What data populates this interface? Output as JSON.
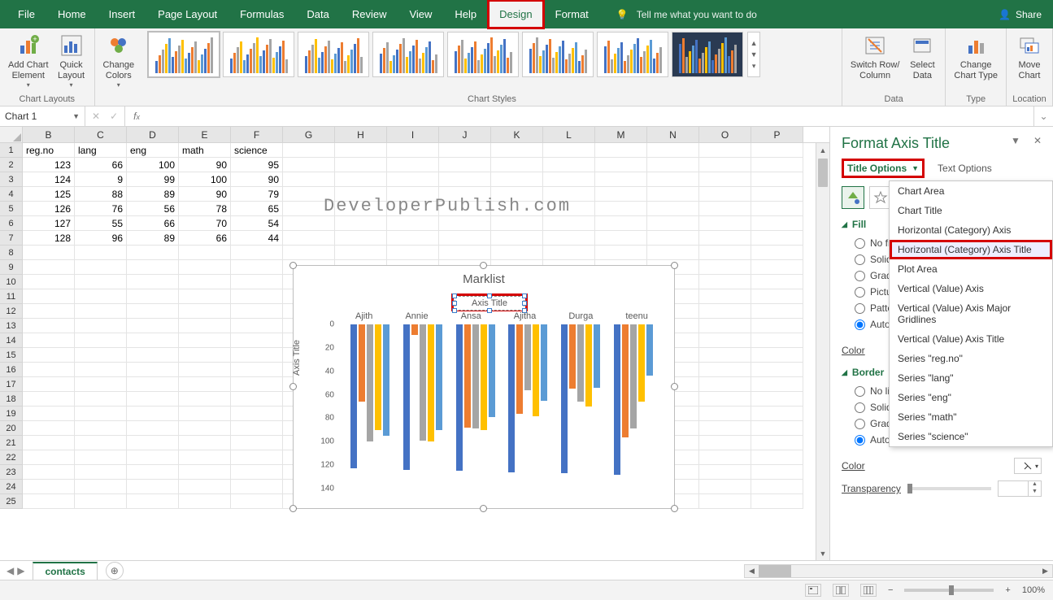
{
  "ribbon": {
    "tabs": [
      "File",
      "Home",
      "Insert",
      "Page Layout",
      "Formulas",
      "Data",
      "Review",
      "View",
      "Help",
      "Design",
      "Format"
    ],
    "active_tab": "Design",
    "highlight_tab": "Design",
    "tell_me": "Tell me what you want to do",
    "share": "Share"
  },
  "ribbon_groups": {
    "chart_layouts": {
      "label": "Chart Layouts",
      "add_el": "Add Chart\nElement",
      "quick": "Quick\nLayout"
    },
    "change_colors": "Change\nColors",
    "chart_styles": {
      "label": "Chart Styles"
    },
    "data": {
      "label": "Data",
      "switch": "Switch Row/\nColumn",
      "select": "Select\nData"
    },
    "type": {
      "label": "Type",
      "change": "Change\nChart Type"
    },
    "location": {
      "label": "Location",
      "move": "Move\nChart"
    }
  },
  "namebox": "Chart 1",
  "fx": "",
  "columns": [
    "B",
    "C",
    "D",
    "E",
    "F",
    "G",
    "H",
    "I",
    "J",
    "K",
    "L",
    "M",
    "N",
    "O",
    "P"
  ],
  "rows": [
    1,
    2,
    3,
    4,
    5,
    6,
    7,
    8,
    9,
    10,
    11,
    12,
    13,
    14,
    15,
    16,
    17,
    18,
    19,
    20,
    21,
    22,
    23,
    24,
    25
  ],
  "table": {
    "headers": [
      "reg.no",
      "lang",
      "eng",
      "math",
      "science"
    ],
    "data": [
      [
        123,
        66,
        100,
        90,
        95
      ],
      [
        124,
        9,
        99,
        100,
        90
      ],
      [
        125,
        88,
        89,
        90,
        79
      ],
      [
        126,
        76,
        56,
        78,
        65
      ],
      [
        127,
        55,
        66,
        70,
        54
      ],
      [
        128,
        96,
        89,
        66,
        44
      ]
    ]
  },
  "watermark": "DeveloperPublish.com",
  "chart": {
    "title": "Marklist",
    "axis_title_text": "Axis Title",
    "vaxis_title": "Axis Title",
    "categories": [
      "Ajith",
      "Annie",
      "Ansa",
      "Ajitha",
      "Durga",
      "teenu"
    ],
    "series_colors": [
      "#4472c4",
      "#ed7d31",
      "#a5a5a5",
      "#ffc000",
      "#5b9bd5"
    ],
    "y_ticks": [
      0,
      20,
      40,
      60,
      80,
      100,
      120,
      140
    ],
    "y_max": 140,
    "values": [
      [
        123,
        66,
        100,
        90,
        95
      ],
      [
        124,
        9,
        99,
        100,
        90
      ],
      [
        125,
        88,
        89,
        90,
        79
      ],
      [
        126,
        76,
        56,
        78,
        65
      ],
      [
        127,
        55,
        66,
        70,
        54
      ],
      [
        128,
        96,
        89,
        66,
        44
      ]
    ]
  },
  "format_pane": {
    "title": "Format Axis Title",
    "tab_title_options": "Title Options",
    "tab_text_options": "Text Options",
    "fill_label": "Fill",
    "fill_opts": [
      "No fill",
      "Solid fill",
      "Gradient fill",
      "Picture or texture fill",
      "Pattern fill",
      "Automatic"
    ],
    "fill_selected": "Automatic",
    "color_label": "Color",
    "border_label": "Border",
    "border_opts": [
      "No line",
      "Solid line",
      "Gradient line",
      "Automatic"
    ],
    "border_selected": "Automatic",
    "transparency_label": "Transparency"
  },
  "dropdown": {
    "items": [
      "Chart Area",
      "Chart Title",
      "Horizontal (Category) Axis",
      "Horizontal (Category) Axis Title",
      "Plot Area",
      "Vertical (Value) Axis",
      "Vertical (Value) Axis Major Gridlines",
      "Vertical (Value) Axis Title",
      "Series \"reg.no\"",
      "Series \"lang\"",
      "Series \"eng\"",
      "Series \"math\"",
      "Series \"science\""
    ],
    "highlight": "Horizontal (Category) Axis Title"
  },
  "sheet": {
    "name": "contacts"
  },
  "status": {
    "zoom": "100%"
  },
  "style_thumbs": {
    "count": 8,
    "bg": [
      "#fff",
      "#fff",
      "#fff",
      "#fff",
      "#fff",
      "#fff",
      "#fff",
      "#2a3a52"
    ],
    "bar_palette": [
      "#4472c4",
      "#ed7d31",
      "#a5a5a5",
      "#ffc000",
      "#5b9bd5"
    ]
  }
}
